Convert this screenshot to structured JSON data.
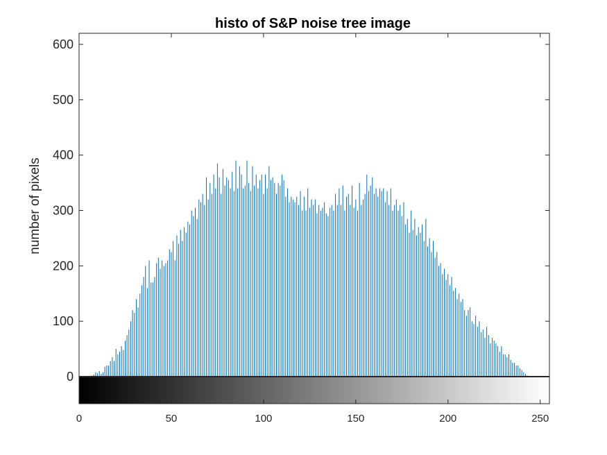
{
  "chart_data": {
    "type": "bar",
    "title": "histo of S&P noise  tree image",
    "xlabel": "",
    "ylabel": "number of pixels",
    "xlim": [
      0,
      255
    ],
    "ylim": [
      0,
      620
    ],
    "x_ticks": [
      "0",
      "50",
      "100",
      "150",
      "200",
      "250"
    ],
    "y_ticks": [
      "0",
      "100",
      "200",
      "300",
      "400",
      "500",
      "600"
    ],
    "bar_color": "#0072BD",
    "grid": false,
    "legend": "none",
    "colorbar": "grayscale gradient below x-axis, black at 0 to white at 255",
    "x_start": 0,
    "values": [
      0,
      0,
      0,
      0,
      0,
      0,
      0,
      2,
      4,
      8,
      6,
      10,
      5,
      8,
      18,
      20,
      20,
      28,
      35,
      28,
      50,
      40,
      45,
      55,
      48,
      65,
      75,
      85,
      100,
      120,
      115,
      140,
      125,
      150,
      165,
      180,
      200,
      160,
      210,
      170,
      170,
      180,
      205,
      215,
      195,
      210,
      200,
      205,
      210,
      230,
      225,
      245,
      210,
      255,
      240,
      265,
      245,
      270,
      260,
      280,
      275,
      300,
      290,
      305,
      285,
      320,
      315,
      330,
      310,
      360,
      320,
      350,
      330,
      365,
      340,
      385,
      360,
      330,
      375,
      345,
      360,
      355,
      340,
      370,
      335,
      390,
      340,
      380,
      365,
      340,
      345,
      390,
      350,
      335,
      380,
      345,
      365,
      340,
      355,
      365,
      330,
      365,
      340,
      380,
      355,
      360,
      350,
      330,
      350,
      345,
      365,
      355,
      325,
      340,
      315,
      325,
      320,
      315,
      325,
      310,
      335,
      300,
      325,
      300,
      340,
      305,
      320,
      310,
      320,
      295,
      310,
      300,
      305,
      315,
      295,
      290,
      305,
      310,
      300,
      330,
      310,
      340,
      310,
      345,
      300,
      325,
      330,
      310,
      345,
      305,
      320,
      300,
      350,
      310,
      320,
      330,
      365,
      335,
      345,
      360,
      330,
      340,
      325,
      340,
      335,
      340,
      315,
      335,
      310,
      340,
      300,
      310,
      320,
      300,
      310,
      290,
      315,
      275,
      285,
      260,
      300,
      265,
      285,
      255,
      270,
      260,
      275,
      245,
      285,
      235,
      250,
      225,
      245,
      215,
      225,
      200,
      205,
      185,
      195,
      175,
      185,
      165,
      180,
      155,
      160,
      140,
      150,
      135,
      140,
      120,
      110,
      120,
      125,
      100,
      95,
      110,
      90,
      100,
      80,
      85,
      70,
      90,
      75,
      60,
      70,
      65,
      60,
      55,
      45,
      55,
      40,
      40,
      35,
      40,
      30,
      25,
      25,
      20,
      20,
      15,
      12,
      8,
      5,
      2,
      1,
      0,
      0,
      0,
      0,
      0,
      0,
      0,
      0,
      0,
      0,
      0,
      0,
      0,
      0,
      0,
      0
    ]
  }
}
